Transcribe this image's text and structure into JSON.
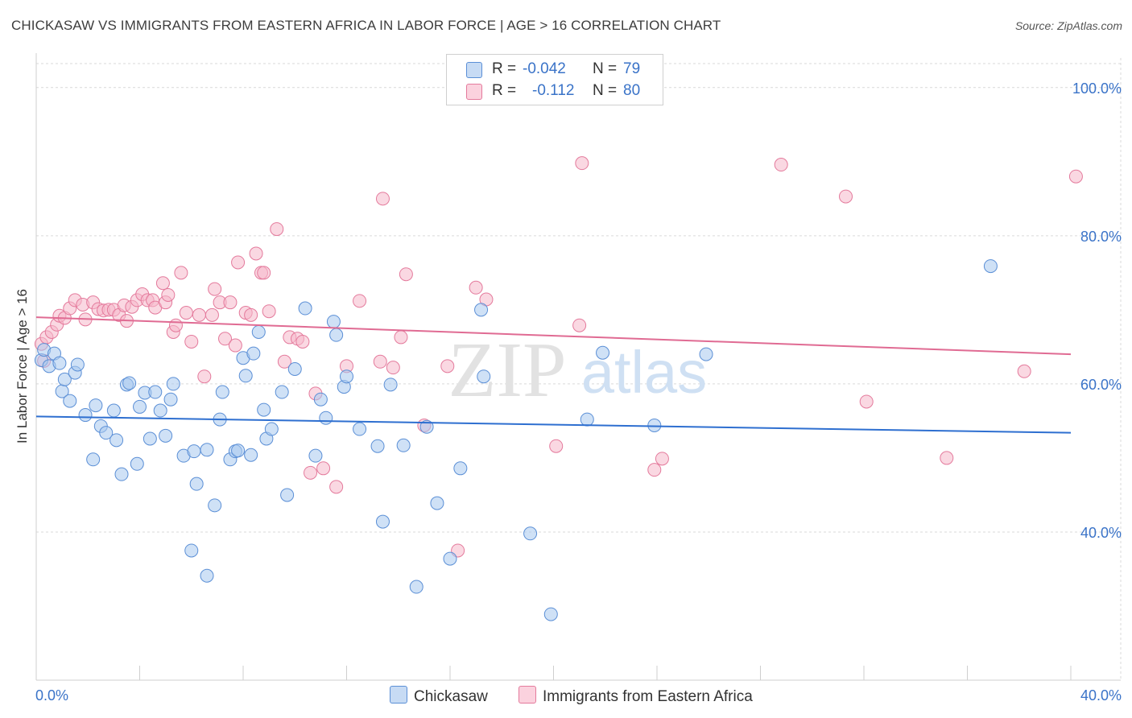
{
  "header": {
    "title": "CHICKASAW VS IMMIGRANTS FROM EASTERN AFRICA IN LABOR FORCE | AGE > 16 CORRELATION CHART",
    "source": "Source: ZipAtlas.com"
  },
  "legend_stats": {
    "chickasaw": {
      "r_label": "R =",
      "r_value": "-0.042",
      "n_label": "N =",
      "n_value": "79"
    },
    "immigrants": {
      "r_label": "R =",
      "r_value": "-0.112",
      "n_label": "N =",
      "n_value": "80"
    }
  },
  "colors": {
    "chickasaw_fill": "#a8c8ef",
    "chickasaw_stroke": "#5b8fd6",
    "chickasaw_line": "#2e6fd0",
    "immigrants_fill": "#f6b8cb",
    "immigrants_stroke": "#e47a9c",
    "immigrants_line": "#e06b93",
    "tick_label": "#3a73c8",
    "grid": "#d9d9d9"
  },
  "watermark": {
    "zip": "ZIP",
    "atlas": "atlas"
  },
  "chart_data": {
    "type": "scatter",
    "title": "CHICKASAW VS IMMIGRANTS FROM EASTERN AFRICA IN LABOR FORCE | AGE > 16 CORRELATION CHART",
    "xlabel": "",
    "ylabel": "In Labor Force | Age > 16",
    "xlim": [
      0,
      40
    ],
    "ylim": [
      20,
      104
    ],
    "x_tick_labels": [
      "0.0%",
      "40.0%"
    ],
    "y_ticks": [
      40,
      60,
      80,
      100
    ],
    "y_tick_labels": [
      "40.0%",
      "60.0%",
      "80.0%",
      "100.0%"
    ],
    "grid": true,
    "legend_position": "bottom",
    "series": [
      {
        "name": "Chickasaw",
        "trend": [
          [
            0,
            55.6
          ],
          [
            40,
            53.4
          ]
        ],
        "points": [
          [
            0.2,
            63.2
          ],
          [
            0.3,
            64.6
          ],
          [
            0.5,
            62.4
          ],
          [
            0.7,
            64.1
          ],
          [
            0.9,
            62.8
          ],
          [
            1.0,
            59.0
          ],
          [
            1.1,
            60.6
          ],
          [
            1.3,
            57.7
          ],
          [
            1.5,
            61.5
          ],
          [
            1.6,
            62.6
          ],
          [
            1.9,
            55.8
          ],
          [
            2.2,
            49.8
          ],
          [
            2.3,
            57.1
          ],
          [
            2.5,
            54.3
          ],
          [
            2.7,
            53.4
          ],
          [
            3.0,
            56.4
          ],
          [
            3.1,
            52.4
          ],
          [
            3.3,
            47.8
          ],
          [
            3.5,
            59.9
          ],
          [
            3.6,
            60.1
          ],
          [
            3.9,
            49.2
          ],
          [
            4.0,
            56.9
          ],
          [
            4.2,
            58.8
          ],
          [
            4.4,
            52.6
          ],
          [
            4.6,
            58.9
          ],
          [
            4.8,
            56.4
          ],
          [
            5.0,
            53.0
          ],
          [
            5.2,
            57.9
          ],
          [
            5.3,
            60.0
          ],
          [
            5.7,
            50.3
          ],
          [
            6.1,
            50.9
          ],
          [
            6.2,
            46.5
          ],
          [
            6.6,
            51.1
          ],
          [
            6.9,
            43.6
          ],
          [
            7.1,
            55.2
          ],
          [
            7.2,
            58.9
          ],
          [
            7.5,
            49.8
          ],
          [
            7.7,
            50.9
          ],
          [
            7.8,
            51.0
          ],
          [
            8.0,
            63.5
          ],
          [
            8.1,
            61.1
          ],
          [
            8.3,
            50.4
          ],
          [
            8.4,
            64.1
          ],
          [
            8.6,
            67.0
          ],
          [
            8.8,
            56.5
          ],
          [
            8.9,
            52.6
          ],
          [
            9.1,
            53.9
          ],
          [
            9.5,
            58.9
          ],
          [
            9.7,
            45.0
          ],
          [
            10.0,
            62.0
          ],
          [
            10.4,
            70.2
          ],
          [
            10.8,
            50.3
          ],
          [
            11.0,
            57.9
          ],
          [
            11.2,
            55.4
          ],
          [
            11.5,
            68.4
          ],
          [
            11.6,
            66.6
          ],
          [
            11.9,
            59.6
          ],
          [
            12.0,
            61.0
          ],
          [
            12.5,
            53.9
          ],
          [
            13.2,
            51.6
          ],
          [
            13.4,
            41.4
          ],
          [
            13.7,
            59.9
          ],
          [
            14.2,
            51.7
          ],
          [
            14.7,
            32.6
          ],
          [
            15.1,
            54.2
          ],
          [
            15.5,
            43.9
          ],
          [
            16.0,
            36.4
          ],
          [
            16.4,
            48.6
          ],
          [
            17.2,
            70.0
          ],
          [
            17.3,
            61.0
          ],
          [
            19.1,
            39.8
          ],
          [
            19.9,
            28.9
          ],
          [
            21.3,
            55.2
          ],
          [
            21.9,
            64.2
          ],
          [
            23.9,
            54.4
          ],
          [
            25.9,
            64.0
          ],
          [
            36.9,
            75.9
          ],
          [
            6.0,
            37.5
          ],
          [
            6.6,
            34.1
          ]
        ]
      },
      {
        "name": "Immigrants from Eastern Africa",
        "trend": [
          [
            0,
            69.0
          ],
          [
            40,
            64.0
          ]
        ],
        "points": [
          [
            0.2,
            65.4
          ],
          [
            0.3,
            63.1
          ],
          [
            0.4,
            66.3
          ],
          [
            0.6,
            67.0
          ],
          [
            0.8,
            68.0
          ],
          [
            0.9,
            69.2
          ],
          [
            1.1,
            68.9
          ],
          [
            1.3,
            70.2
          ],
          [
            1.5,
            71.3
          ],
          [
            1.8,
            70.7
          ],
          [
            1.9,
            68.7
          ],
          [
            2.2,
            71.0
          ],
          [
            2.4,
            70.1
          ],
          [
            2.6,
            69.9
          ],
          [
            2.8,
            70.0
          ],
          [
            3.0,
            70.0
          ],
          [
            3.2,
            69.3
          ],
          [
            3.4,
            70.6
          ],
          [
            3.5,
            68.5
          ],
          [
            3.7,
            70.4
          ],
          [
            3.9,
            71.3
          ],
          [
            4.1,
            72.1
          ],
          [
            4.3,
            71.3
          ],
          [
            4.5,
            71.3
          ],
          [
            4.6,
            70.3
          ],
          [
            4.9,
            73.6
          ],
          [
            5.0,
            71.0
          ],
          [
            5.1,
            72.0
          ],
          [
            5.3,
            67.0
          ],
          [
            5.4,
            67.9
          ],
          [
            5.6,
            75.0
          ],
          [
            5.8,
            69.6
          ],
          [
            6.0,
            65.7
          ],
          [
            6.3,
            69.3
          ],
          [
            6.5,
            61.0
          ],
          [
            6.8,
            69.3
          ],
          [
            6.9,
            72.8
          ],
          [
            7.1,
            71.0
          ],
          [
            7.3,
            66.1
          ],
          [
            7.5,
            71.0
          ],
          [
            7.7,
            65.2
          ],
          [
            7.8,
            76.4
          ],
          [
            8.1,
            69.6
          ],
          [
            8.3,
            69.3
          ],
          [
            8.5,
            77.6
          ],
          [
            8.7,
            75.0
          ],
          [
            8.8,
            75.0
          ],
          [
            9.0,
            69.8
          ],
          [
            9.3,
            80.9
          ],
          [
            9.6,
            63.0
          ],
          [
            9.8,
            66.3
          ],
          [
            10.1,
            66.1
          ],
          [
            10.3,
            65.7
          ],
          [
            10.6,
            48.0
          ],
          [
            10.8,
            58.7
          ],
          [
            11.1,
            48.6
          ],
          [
            11.6,
            46.1
          ],
          [
            12.0,
            62.4
          ],
          [
            12.5,
            71.2
          ],
          [
            13.3,
            63.0
          ],
          [
            13.4,
            85.0
          ],
          [
            13.8,
            62.2
          ],
          [
            14.1,
            66.3
          ],
          [
            14.3,
            74.8
          ],
          [
            15.0,
            54.4
          ],
          [
            15.9,
            62.4
          ],
          [
            16.3,
            37.5
          ],
          [
            17.0,
            73.0
          ],
          [
            17.4,
            71.4
          ],
          [
            20.1,
            51.6
          ],
          [
            21.0,
            67.9
          ],
          [
            21.1,
            89.8
          ],
          [
            23.9,
            48.4
          ],
          [
            24.2,
            49.9
          ],
          [
            28.8,
            89.6
          ],
          [
            31.3,
            85.3
          ],
          [
            32.1,
            57.6
          ],
          [
            35.2,
            50.0
          ],
          [
            38.2,
            61.7
          ],
          [
            40.2,
            88.0
          ]
        ]
      }
    ]
  }
}
